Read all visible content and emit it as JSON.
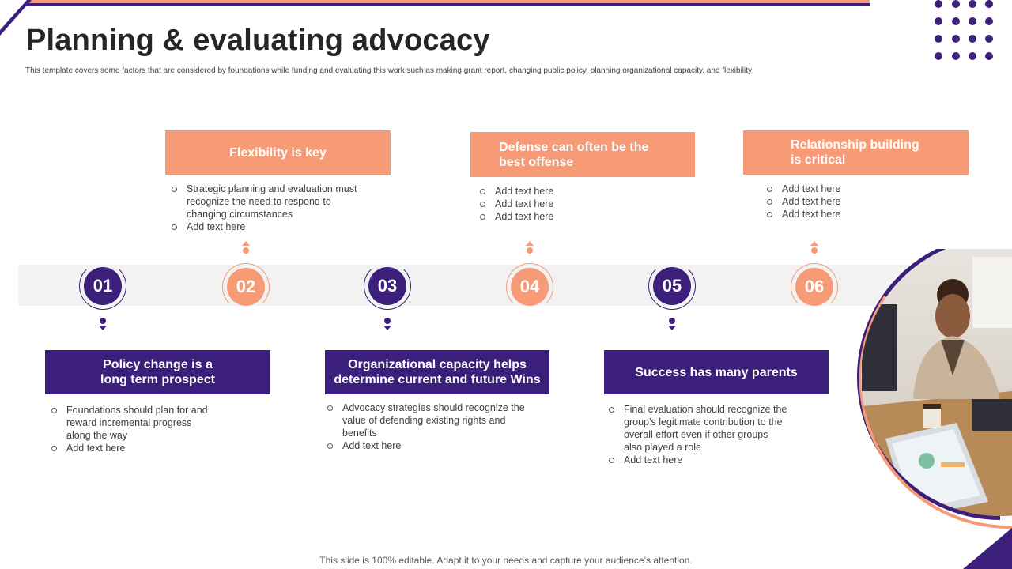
{
  "header": {
    "title": "Planning & evaluating advocacy",
    "subtitle": "This template covers some factors that are considered by foundations while funding and evaluating this work such as making grant report, changing public policy, planning organizational capacity, and flexibility"
  },
  "timeline": [
    {
      "number": "01",
      "heading": "Policy change is a long term prospect",
      "bullets": [
        "Foundations should plan for and reward incremental progress along the way",
        "Add text here"
      ]
    },
    {
      "number": "02",
      "heading": "Flexibility is key",
      "bullets": [
        "Strategic planning and evaluation must recognize the need to respond to changing circumstances",
        "Add text here"
      ]
    },
    {
      "number": "03",
      "heading": "Organizational capacity helps determine current and future Wins",
      "bullets": [
        "Advocacy strategies should recognize the value of defending existing rights and benefits",
        "Add text here"
      ]
    },
    {
      "number": "04",
      "heading": "Defense can often be the best offense",
      "bullets": [
        "Add text here",
        "Add text here",
        "Add text here"
      ]
    },
    {
      "number": "05",
      "heading": "Success has many parents",
      "bullets": [
        "Final evaluation should recognize the group’s legitimate contribution to the overall effort even if other groups also played a role",
        "Add text here"
      ]
    },
    {
      "number": "06",
      "heading": "Relationship building is critical",
      "bullets": [
        "Add text here",
        "Add text here",
        "Add text here"
      ]
    }
  ],
  "footer": "This slide is 100% editable. Adapt it to your needs and capture your audience’s attention.",
  "colors": {
    "purple": "#3b1f7a",
    "orange": "#f79b76",
    "band": "#f2f2f2"
  }
}
